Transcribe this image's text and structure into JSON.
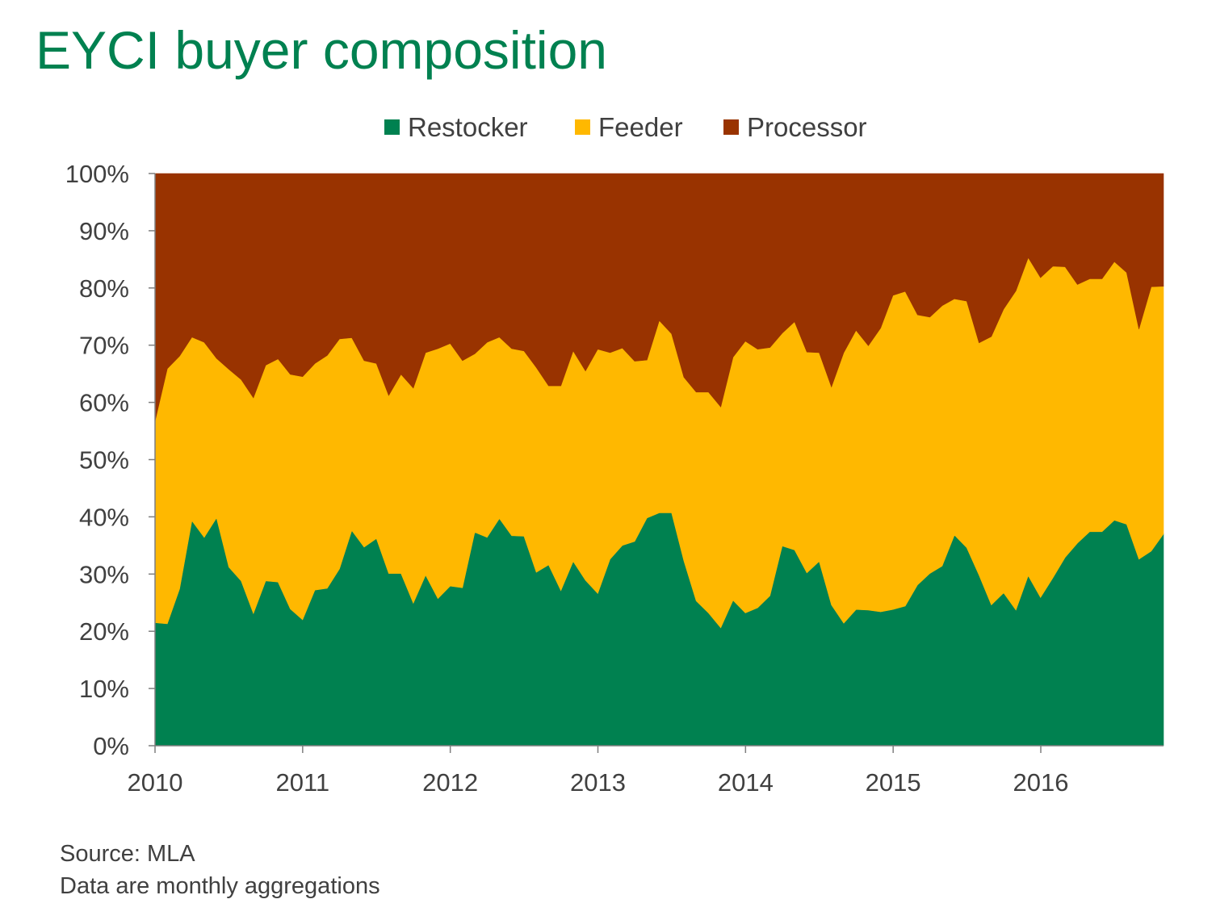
{
  "title": "EYCI buyer composition",
  "footer": {
    "source": "Source: MLA",
    "note": "Data are monthly aggregations"
  },
  "chart_data": {
    "type": "area",
    "stacked": true,
    "x_start": "2010-01",
    "x_interval": "monthly",
    "x_ticks": [
      "2010",
      "2011",
      "2012",
      "2013",
      "2014",
      "2015",
      "2016"
    ],
    "y_ticks": [
      "0%",
      "10%",
      "20%",
      "30%",
      "40%",
      "50%",
      "60%",
      "70%",
      "80%",
      "90%",
      "100%"
    ],
    "ylim": [
      0,
      100
    ],
    "legend_position": "top",
    "series": [
      {
        "name": "Restocker",
        "color": "#008150",
        "values": [
          21.5,
          21.3,
          27.4,
          39.3,
          36.4,
          39.8,
          31.2,
          28.8,
          23.1,
          28.8,
          28.6,
          23.9,
          22.0,
          27.2,
          27.5,
          30.9,
          37.6,
          34.7,
          36.2,
          30.1,
          30.1,
          24.9,
          29.8,
          25.7,
          27.9,
          27.6,
          37.3,
          36.4,
          39.7,
          36.7,
          36.6,
          30.3,
          31.6,
          27.1,
          32.2,
          28.9,
          26.6,
          32.6,
          35.0,
          35.7,
          39.8,
          40.7,
          40.7,
          32.3,
          25.3,
          23.2,
          20.6,
          25.4,
          23.2,
          24.1,
          26.2,
          34.9,
          34.2,
          30.2,
          32.2,
          24.6,
          21.4,
          23.8,
          23.7,
          23.4,
          23.8,
          24.4,
          28.1,
          30.1,
          31.4,
          36.8,
          34.6,
          29.8,
          24.6,
          26.7,
          23.7,
          29.7,
          25.9,
          29.3,
          32.9,
          35.4,
          37.4,
          37.4,
          39.4,
          38.7,
          32.6,
          34.0,
          37.0
        ]
      },
      {
        "name": "Feeder",
        "color": "#ffb800",
        "values": [
          35.2,
          44.6,
          40.7,
          32.1,
          34.1,
          27.9,
          34.6,
          35.2,
          37.7,
          37.7,
          39.0,
          41.0,
          42.5,
          39.6,
          40.7,
          40.2,
          33.7,
          32.6,
          30.6,
          31.1,
          34.8,
          37.6,
          38.9,
          43.7,
          42.4,
          39.7,
          31.2,
          34.1,
          31.7,
          32.7,
          32.4,
          35.8,
          31.3,
          35.8,
          36.8,
          36.6,
          42.7,
          36.1,
          34.5,
          31.5,
          27.6,
          33.6,
          31.3,
          32.1,
          36.5,
          38.6,
          38.6,
          42.5,
          47.5,
          45.2,
          43.4,
          37.2,
          39.9,
          38.6,
          36.5,
          38.1,
          47.3,
          48.8,
          46.2,
          49.6,
          54.9,
          55.0,
          47.2,
          44.8,
          45.5,
          41.3,
          43.1,
          40.6,
          46.9,
          49.6,
          55.8,
          55.6,
          55.9,
          54.5,
          50.8,
          45.2,
          44.2,
          44.2,
          45.2,
          44.0,
          40.2,
          46.2,
          43.3
        ]
      },
      {
        "name": "Processor",
        "color": "#993300",
        "values": [
          43.3,
          34.1,
          31.9,
          28.6,
          29.5,
          32.3,
          34.2,
          36.0,
          39.2,
          33.5,
          32.4,
          35.1,
          35.5,
          33.2,
          31.8,
          28.9,
          28.7,
          32.7,
          33.2,
          38.8,
          35.1,
          37.5,
          31.3,
          30.6,
          29.7,
          32.7,
          31.5,
          29.5,
          28.6,
          30.6,
          31.0,
          33.9,
          37.1,
          37.1,
          31.0,
          34.5,
          30.7,
          31.3,
          30.5,
          32.8,
          32.6,
          25.7,
          28.0,
          35.6,
          38.2,
          38.2,
          40.8,
          32.1,
          29.3,
          30.7,
          30.4,
          27.9,
          25.9,
          31.2,
          31.3,
          37.3,
          31.3,
          27.4,
          30.1,
          27.0,
          21.3,
          20.6,
          24.7,
          25.1,
          23.1,
          21.9,
          22.3,
          29.6,
          28.5,
          23.7,
          20.5,
          14.7,
          18.2,
          16.2,
          16.3,
          19.4,
          18.4,
          18.4,
          15.4,
          17.3,
          27.2,
          19.8,
          19.7
        ]
      }
    ]
  }
}
